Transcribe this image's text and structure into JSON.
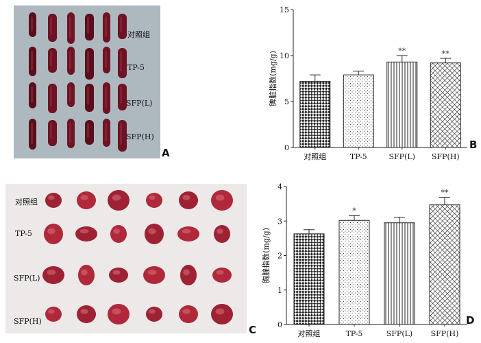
{
  "panels": {
    "A": {
      "letter": "A",
      "row_labels": [
        "对照组",
        "TP-5",
        "SFP(L)",
        "SFP(H)"
      ]
    },
    "B": {
      "letter": "B"
    },
    "C": {
      "letter": "C",
      "row_labels": [
        "对照组",
        "TP-5",
        "SFP(L)",
        "SFP(H)"
      ]
    },
    "D": {
      "letter": "D"
    }
  },
  "chart_data": [
    {
      "panel": "B",
      "type": "bar",
      "categories": [
        "对照组",
        "TP-5",
        "SFP(L)",
        "SFP(H)"
      ],
      "values": [
        7.2,
        7.9,
        9.3,
        9.2
      ],
      "errors": [
        0.7,
        0.4,
        0.7,
        0.5
      ],
      "significance": [
        "",
        "",
        "**",
        "**"
      ],
      "patterns": [
        "checker",
        "dots",
        "vlines",
        "crosshatch"
      ],
      "ylabel": "脾脏指数(mg/g)",
      "ylim": [
        0,
        15
      ],
      "yticks": [
        0,
        5,
        10,
        15
      ],
      "tick_labels": [
        "0",
        "5",
        "10",
        "15"
      ]
    },
    {
      "panel": "D",
      "type": "bar",
      "categories": [
        "对照组",
        "TP-5",
        "SFP(L)",
        "SFP(H)"
      ],
      "values": [
        2.63,
        3.02,
        2.95,
        3.47
      ],
      "errors": [
        0.12,
        0.14,
        0.16,
        0.22
      ],
      "significance": [
        "",
        "*",
        "",
        "**"
      ],
      "patterns": [
        "checker",
        "dots",
        "vlines",
        "crosshatch"
      ],
      "ylabel": "胸腺指数(mg/g)",
      "ylim": [
        0,
        4
      ],
      "yticks": [
        0,
        1,
        2,
        3,
        4
      ],
      "tick_labels": [
        "0",
        "1",
        "2",
        "3",
        "4"
      ]
    }
  ]
}
